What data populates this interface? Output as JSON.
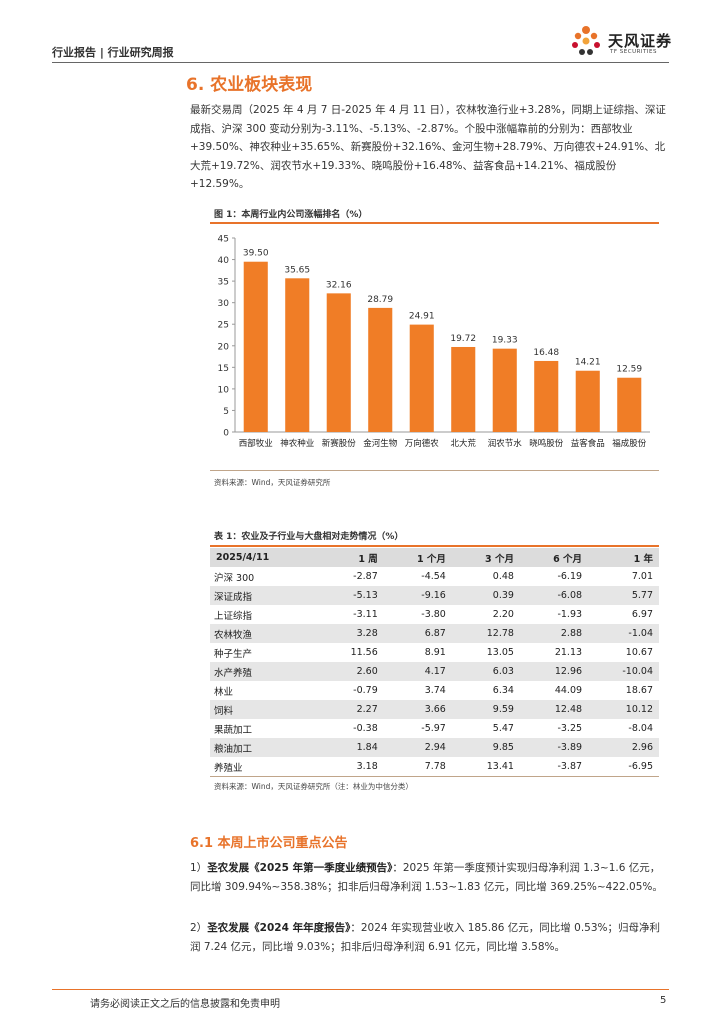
{
  "header": {
    "left": "行业报告 | 行业研究周报",
    "logo_cn": "天风证券",
    "logo_en": "TF SECURITIES"
  },
  "section": {
    "title": "6. 农业板块表现",
    "paragraph": "最新交易周（2025 年 4 月 7 日-2025 年 4 月 11 日），农林牧渔行业+3.28%，同期上证综指、深证成指、沪深 300 变动分别为-3.11%、-5.13%、-2.87%。个股中涨幅靠前的分别为：西部牧业+39.50%、神农种业+35.65%、新赛股份+32.16%、金河生物+28.79%、万向德农+24.91%、北大荒+19.72%、润农节水+19.33%、晓鸣股份+16.48%、益客食品+14.21%、福成股份+12.59%。"
  },
  "figure": {
    "title": "图 1：本周行业内公司涨幅排名（%）",
    "source": "资料来源：Wind，天风证券研究所"
  },
  "chart_data": {
    "type": "bar",
    "title": "本周行业内公司涨幅排名（%）",
    "categories": [
      "西部牧业",
      "神农种业",
      "新赛股份",
      "金河生物",
      "万向德农",
      "北大荒",
      "润农节水",
      "晓鸣股份",
      "益客食品",
      "福成股份"
    ],
    "values": [
      39.5,
      35.65,
      32.16,
      28.79,
      24.91,
      19.72,
      19.33,
      16.48,
      14.21,
      12.59
    ],
    "value_labels": [
      "39.50",
      "35.65",
      "32.16",
      "28.79",
      "24.91",
      "19.72",
      "19.33",
      "16.48",
      "14.21",
      "12.59"
    ],
    "yticks": [
      0,
      5,
      10,
      15,
      20,
      25,
      30,
      35,
      40,
      45
    ],
    "ylim": [
      0,
      45
    ],
    "xlabel": "",
    "ylabel": "",
    "bar_color": "#f07d26"
  },
  "table": {
    "title": "表 1：农业及子行业与大盘相对走势情况（%）",
    "headers": [
      "2025/4/11",
      "1 周",
      "1 个月",
      "3 个月",
      "6 个月",
      "1 年"
    ],
    "rows": [
      [
        "沪深 300",
        "-2.87",
        "-4.54",
        "0.48",
        "-6.19",
        "7.01"
      ],
      [
        "深证成指",
        "-5.13",
        "-9.16",
        "0.39",
        "-6.08",
        "5.77"
      ],
      [
        "上证综指",
        "-3.11",
        "-3.80",
        "2.20",
        "-1.93",
        "6.97"
      ],
      [
        "农林牧渔",
        "3.28",
        "6.87",
        "12.78",
        "2.88",
        "-1.04"
      ],
      [
        "种子生产",
        "11.56",
        "8.91",
        "13.05",
        "21.13",
        "10.67"
      ],
      [
        "水产养殖",
        "2.60",
        "4.17",
        "6.03",
        "12.96",
        "-10.04"
      ],
      [
        "林业",
        "-0.79",
        "3.74",
        "6.34",
        "44.09",
        "18.67"
      ],
      [
        "饲料",
        "2.27",
        "3.66",
        "9.59",
        "12.48",
        "10.12"
      ],
      [
        "果蔬加工",
        "-0.38",
        "-5.97",
        "5.47",
        "-3.25",
        "-8.04"
      ],
      [
        "粮油加工",
        "1.84",
        "2.94",
        "9.85",
        "-3.89",
        "2.96"
      ],
      [
        "养殖业",
        "3.18",
        "7.78",
        "13.41",
        "-3.87",
        "-6.95"
      ]
    ],
    "source": "资料来源：Wind，天风证券研究所（注：林业为中信分类）"
  },
  "announcements": {
    "title": "6.1 本周上市公司重点公告",
    "items": [
      {
        "prefix": "1）",
        "bold": "圣农发展《2025 年第一季度业绩预告》",
        "text": "：2025 年第一季度预计实现归母净利润 1.3~1.6 亿元，同比增 309.94%~358.38%；扣非后归母净利润 1.53~1.83 亿元，同比增 369.25%~422.05%。"
      },
      {
        "prefix": "2）",
        "bold": "圣农发展《2024 年年度报告》",
        "text": "：2024 年实现营业收入 185.86 亿元，同比增 0.53%；归母净利润 7.24 亿元，同比增 9.03%；扣非后归母净利润 6.91 亿元，同比增 3.58%。"
      }
    ]
  },
  "footer": {
    "disclaimer": "请务必阅读正文之后的信息披露和免责申明",
    "page": "5"
  }
}
